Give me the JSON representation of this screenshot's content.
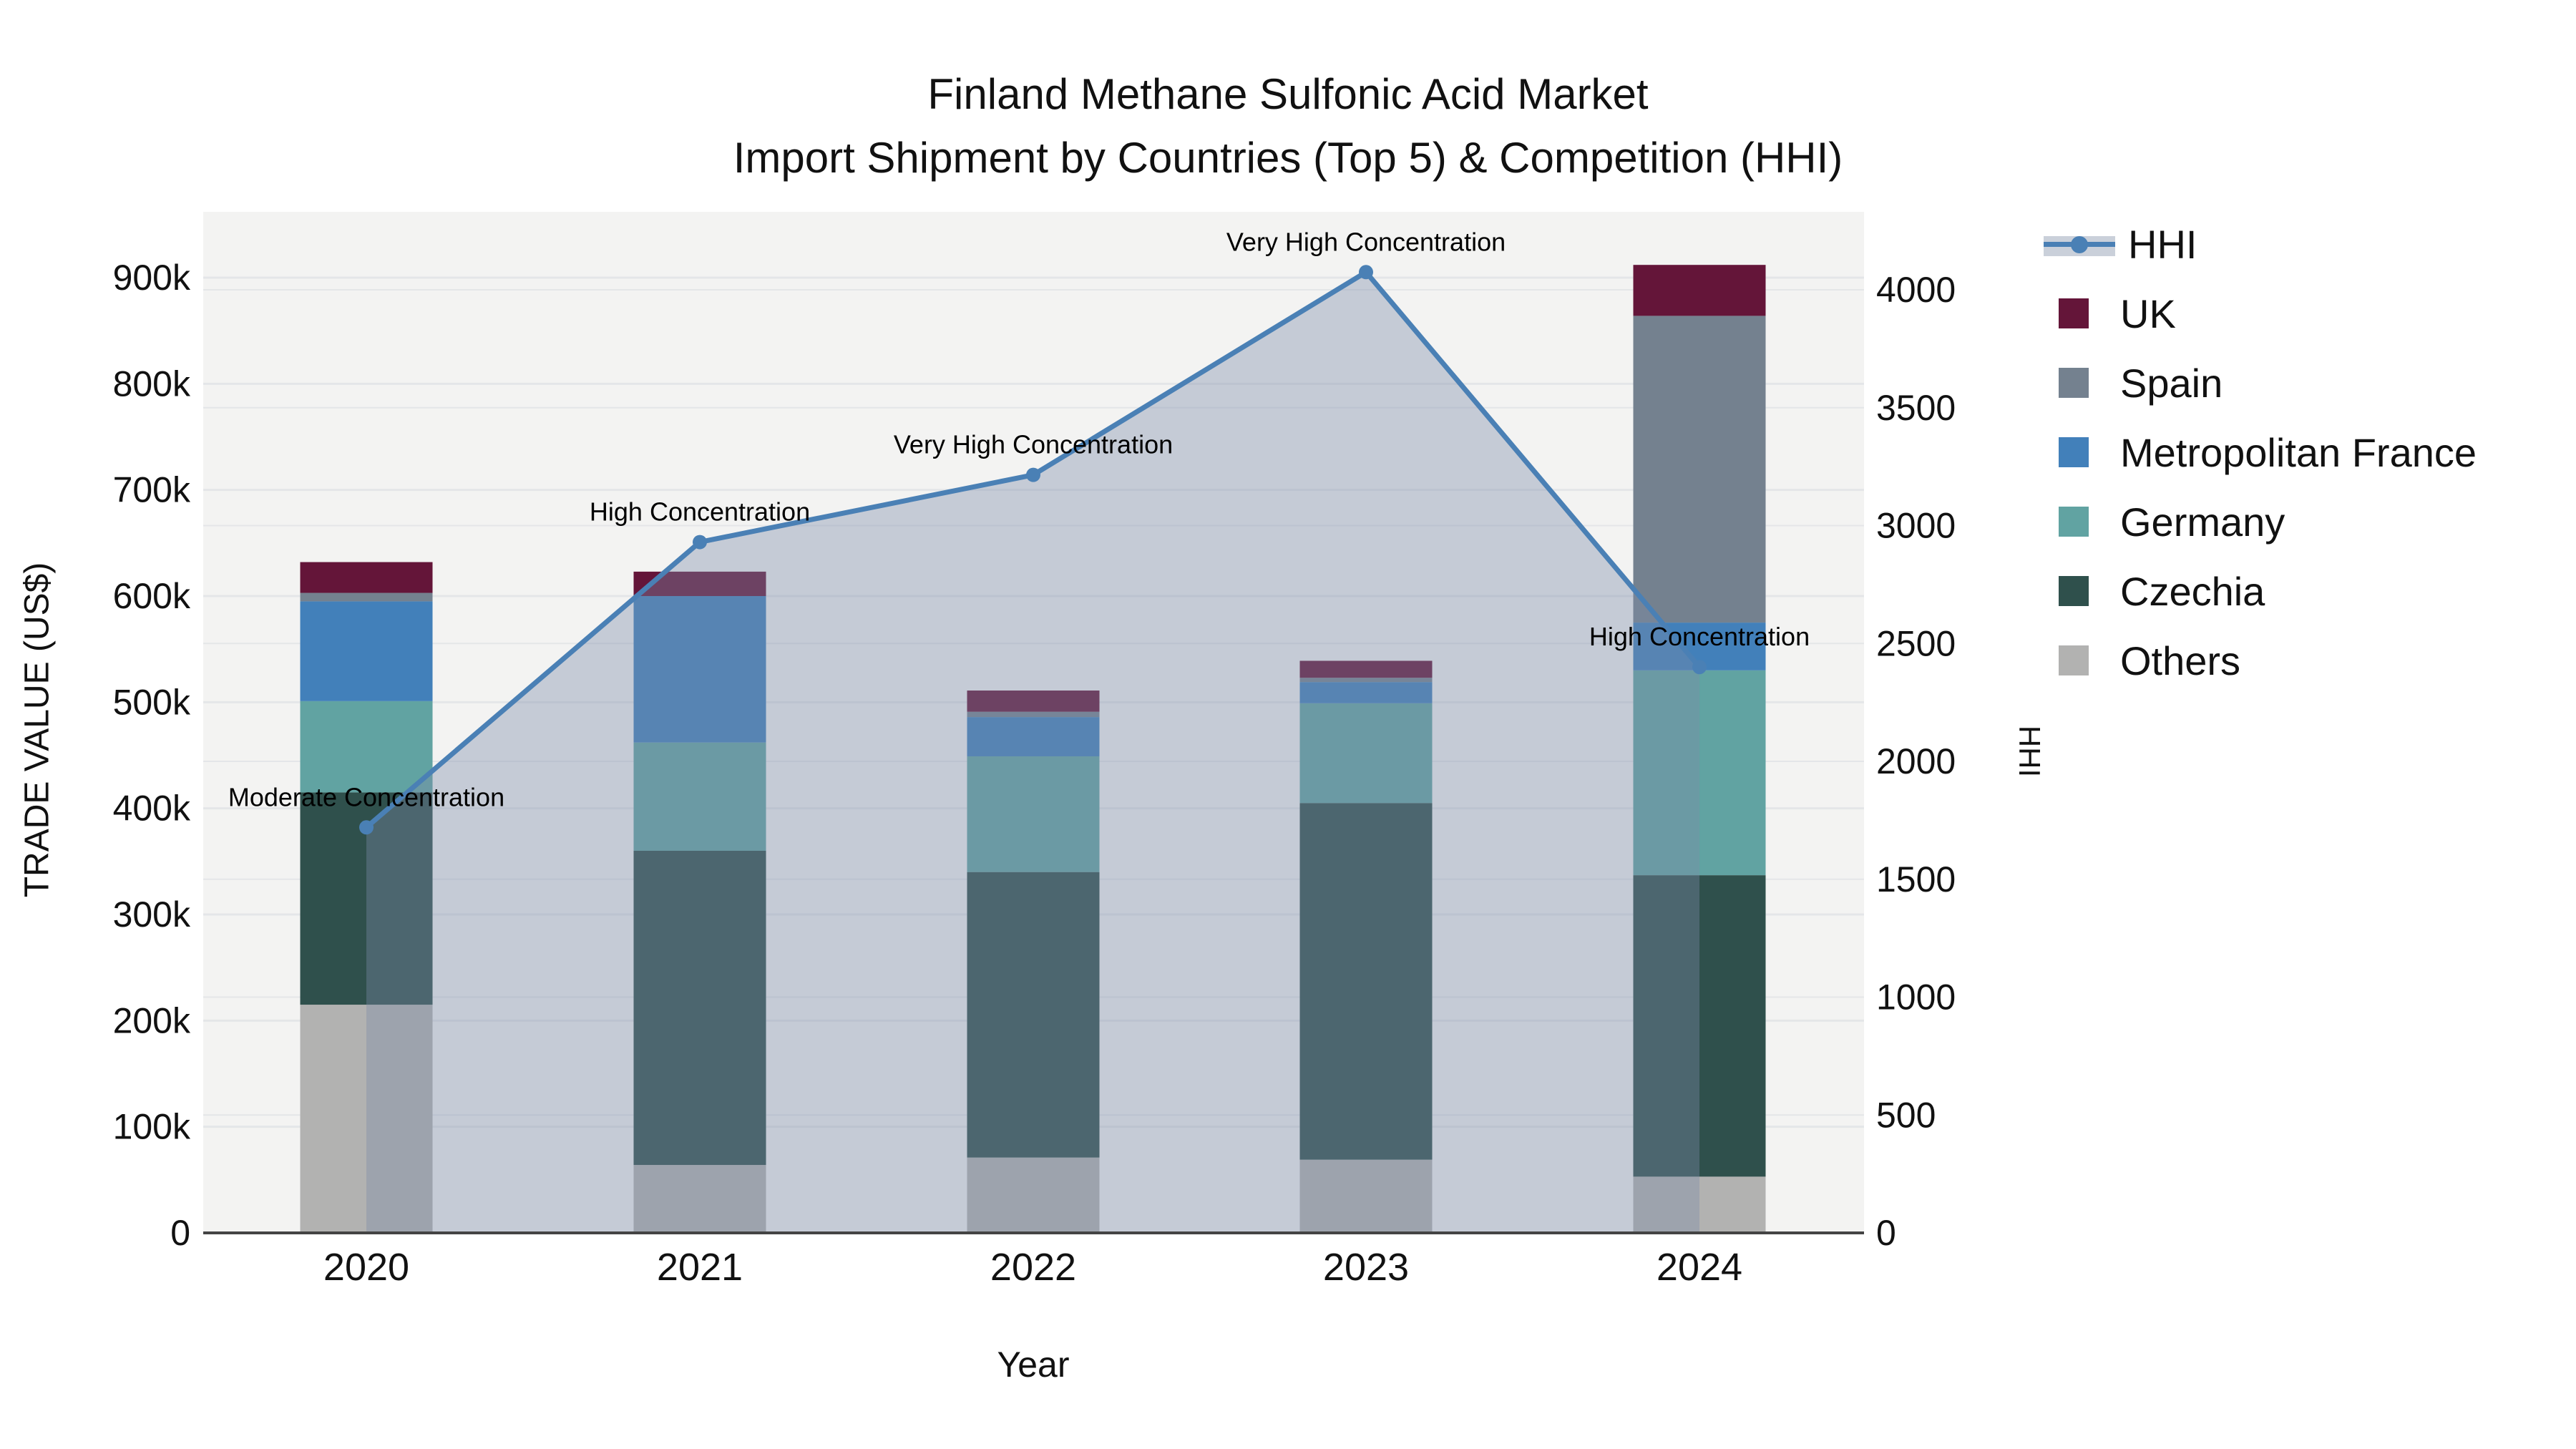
{
  "title": {
    "line1": "Finland Methane Sulfonic Acid Market",
    "line2": "Import Shipment by Countries (Top 5) & Competition (HHI)"
  },
  "axes": {
    "left_label": "TRADE VALUE (US$)",
    "right_label": "HHI",
    "x_label": "Year",
    "left_ticks": [
      {
        "value": 0,
        "label": "0"
      },
      {
        "value": 100000,
        "label": "100k"
      },
      {
        "value": 200000,
        "label": "200k"
      },
      {
        "value": 300000,
        "label": "300k"
      },
      {
        "value": 400000,
        "label": "400k"
      },
      {
        "value": 500000,
        "label": "500k"
      },
      {
        "value": 600000,
        "label": "600k"
      },
      {
        "value": 700000,
        "label": "700k"
      },
      {
        "value": 800000,
        "label": "800k"
      },
      {
        "value": 900000,
        "label": "900k"
      }
    ],
    "right_ticks": [
      {
        "value": 0,
        "label": "0"
      },
      {
        "value": 500,
        "label": "500"
      },
      {
        "value": 1000,
        "label": "1000"
      },
      {
        "value": 1500,
        "label": "1500"
      },
      {
        "value": 2000,
        "label": "2000"
      },
      {
        "value": 2500,
        "label": "2500"
      },
      {
        "value": 3000,
        "label": "3000"
      },
      {
        "value": 3500,
        "label": "3500"
      },
      {
        "value": 4000,
        "label": "4000"
      }
    ]
  },
  "legend": {
    "items": [
      "HHI",
      "UK",
      "Spain",
      "Metropolitan France",
      "Germany",
      "Czechia",
      "Others"
    ]
  },
  "colors": {
    "plot_bg": "#f3f3f2",
    "grid": "#e4e6e8",
    "axis_line": "#444444",
    "text": "#111111",
    "hhi_line": "#4a80b5",
    "hhi_fill": "rgba(124,139,168,0.38)",
    "hhi_legend_band": "#cad0da"
  },
  "chart_data": {
    "type": "stacked-bar+line",
    "title": "Finland Methane Sulfonic Acid Market — Import Shipment by Countries (Top 5) & Competition (HHI)",
    "xlabel": "Year",
    "ylabel_left": "TRADE VALUE (US$)",
    "ylabel_right": "HHI",
    "categories": [
      "2020",
      "2021",
      "2022",
      "2023",
      "2024"
    ],
    "bar_value_unit": "US$",
    "stack_order_bottom_to_top": [
      "Others",
      "Czechia",
      "Germany",
      "Metropolitan France",
      "Spain",
      "UK"
    ],
    "series": [
      {
        "name": "Others",
        "color": "#b2b2b1",
        "values": [
          215000,
          64000,
          71000,
          69000,
          53000
        ]
      },
      {
        "name": "Czechia",
        "color": "#2f504c",
        "values": [
          200000,
          296000,
          269000,
          336000,
          284000
        ]
      },
      {
        "name": "Germany",
        "color": "#61a3a2",
        "values": [
          86000,
          102000,
          109000,
          94000,
          193000
        ]
      },
      {
        "name": "Metropolitan France",
        "color": "#4280ba",
        "values": [
          94000,
          138000,
          37000,
          20000,
          45000
        ]
      },
      {
        "name": "Spain",
        "color": "#74818f",
        "values": [
          8000,
          0,
          5000,
          4000,
          289000
        ]
      },
      {
        "name": "UK",
        "color": "#641539",
        "values": [
          29000,
          23000,
          20000,
          16000,
          48000
        ]
      }
    ],
    "bar_totals": [
      632000,
      623000,
      511000,
      539000,
      912000
    ],
    "line_series": {
      "name": "HHI",
      "color": "#4a80b5",
      "values": [
        1720,
        2930,
        3215,
        4075,
        2400
      ]
    },
    "annotations": [
      {
        "year": "2020",
        "text": "Moderate Concentration"
      },
      {
        "year": "2021",
        "text": "High Concentration"
      },
      {
        "year": "2022",
        "text": "Very High Concentration"
      },
      {
        "year": "2023",
        "text": "Very High Concentration"
      },
      {
        "year": "2024",
        "text": "High Concentration"
      }
    ],
    "ylim_left": [
      0,
      962000
    ],
    "ylim_right": [
      0,
      4330
    ],
    "grid": true,
    "legend_position": "right"
  }
}
